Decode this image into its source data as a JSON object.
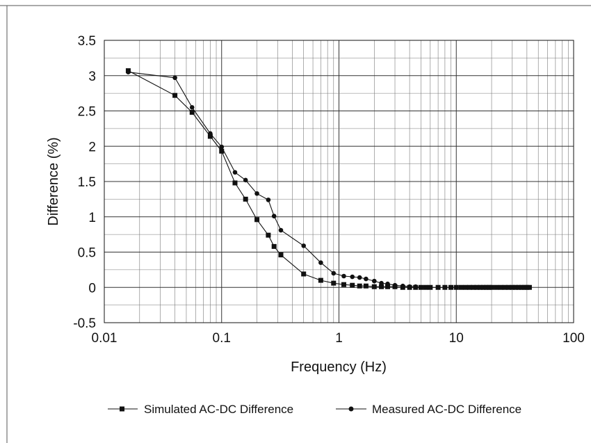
{
  "chart_data": {
    "type": "line",
    "title": "",
    "xlabel": "Frequency (Hz)",
    "ylabel": "Difference (%)",
    "x_scale": "log",
    "xlim": [
      0.01,
      100
    ],
    "ylim": [
      -0.5,
      3.5
    ],
    "x_tick_labels": [
      "0.01",
      "0.1",
      "1",
      "10",
      "100"
    ],
    "y_tick_labels": [
      "3.5",
      "3",
      "2.5",
      "2",
      "1.5",
      "1",
      "0.5",
      "0",
      "-0.5"
    ],
    "grid": true,
    "legend_position": "bottom",
    "series": [
      {
        "name": "Simulated AC-DC Difference",
        "marker": "square",
        "color": "#111111",
        "x": [
          0.016,
          0.04,
          0.056,
          0.08,
          0.1,
          0.13,
          0.16,
          0.2,
          0.25,
          0.28,
          0.32,
          0.5,
          0.7,
          0.9,
          1.1,
          1.3,
          1.5,
          1.7,
          2.0,
          2.3,
          2.6,
          3.0,
          3.5,
          4.0,
          4.5,
          5.0,
          5.5,
          6.0,
          7.0,
          8.0,
          9.0,
          10,
          11,
          12,
          13,
          14,
          15,
          16,
          17,
          18,
          19,
          20,
          22,
          24,
          26,
          28,
          30,
          32,
          34,
          36,
          38,
          40,
          42
        ],
        "y": [
          3.07,
          2.72,
          2.48,
          2.14,
          1.93,
          1.48,
          1.25,
          0.96,
          0.74,
          0.58,
          0.46,
          0.19,
          0.1,
          0.06,
          0.04,
          0.03,
          0.02,
          0.02,
          0.01,
          0.01,
          0.01,
          0.01,
          0.0,
          0.0,
          0.0,
          0.0,
          0.0,
          0.0,
          0.0,
          0.0,
          0.0,
          0.0,
          0.0,
          0.0,
          0.0,
          0.0,
          0.0,
          0.0,
          0.0,
          0.0,
          0.0,
          0.0,
          0.0,
          0.0,
          0.0,
          0.0,
          0.0,
          0.0,
          0.0,
          0.0,
          0.0,
          0.0,
          0.0
        ]
      },
      {
        "name": "Measured AC-DC Difference",
        "marker": "circle",
        "color": "#111111",
        "x": [
          0.016,
          0.04,
          0.056,
          0.08,
          0.1,
          0.13,
          0.16,
          0.2,
          0.25,
          0.28,
          0.32,
          0.5,
          0.7,
          0.9,
          1.1,
          1.3,
          1.5,
          1.7,
          2.0,
          2.3,
          2.6,
          3.0,
          3.5,
          4.0,
          4.5,
          5.0
        ],
        "y": [
          3.05,
          2.97,
          2.55,
          2.18,
          1.99,
          1.63,
          1.52,
          1.33,
          1.24,
          1.01,
          0.81,
          0.59,
          0.35,
          0.2,
          0.16,
          0.15,
          0.14,
          0.12,
          0.09,
          0.06,
          0.05,
          0.03,
          0.02,
          0.01,
          0.01,
          0.0
        ]
      }
    ]
  }
}
